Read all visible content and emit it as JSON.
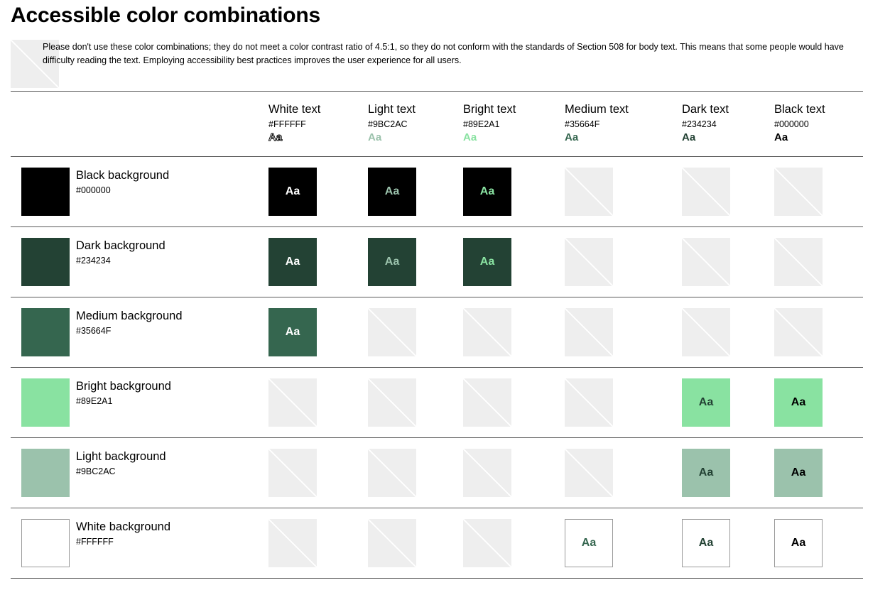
{
  "title": "Accessible color combinations",
  "notice": "Please don't use these color combinations; they do not meet a color contrast ratio of 4.5:1, so they do not conform with the standards of Section 508 for body text. This means that some people would have difficulty reading the text. Employing accessibility best practices improves the user experience for all users.",
  "sample_text": "Aa",
  "columns": [
    {
      "name": "White text",
      "hex": "#FFFFFF"
    },
    {
      "name": "Light text",
      "hex": "#9BC2AC"
    },
    {
      "name": "Bright text",
      "hex": "#89E2A1"
    },
    {
      "name": "Medium text",
      "hex": "#35664F"
    },
    {
      "name": "Dark text",
      "hex": "#234234"
    },
    {
      "name": "Black text",
      "hex": "#000000"
    }
  ],
  "rows": [
    {
      "name": "Black background",
      "hex": "#000000",
      "passing": [
        true,
        true,
        true,
        false,
        false,
        false
      ]
    },
    {
      "name": "Dark background",
      "hex": "#234234",
      "passing": [
        true,
        true,
        true,
        false,
        false,
        false
      ]
    },
    {
      "name": "Medium background",
      "hex": "#35664F",
      "passing": [
        true,
        false,
        false,
        false,
        false,
        false
      ]
    },
    {
      "name": "Bright background",
      "hex": "#89E2A1",
      "passing": [
        false,
        false,
        false,
        false,
        true,
        true
      ]
    },
    {
      "name": "Light background",
      "hex": "#9BC2AC",
      "passing": [
        false,
        false,
        false,
        false,
        true,
        true
      ]
    },
    {
      "name": "White background",
      "hex": "#FFFFFF",
      "passing": [
        false,
        false,
        false,
        true,
        true,
        true
      ]
    }
  ]
}
